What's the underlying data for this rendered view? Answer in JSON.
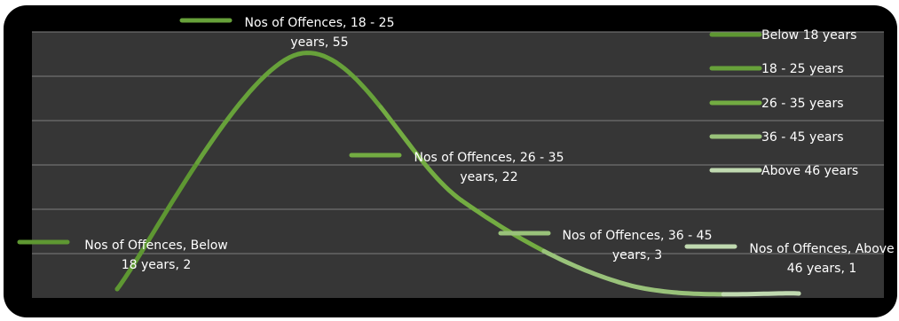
{
  "chart_data": {
    "type": "line",
    "categories": [
      "Below 18 years",
      "18 - 25 years",
      "26 - 35 years",
      "36 - 45 years",
      "Above 46 years"
    ],
    "series": [
      {
        "name": "Nos of Offences",
        "values": [
          2,
          55,
          22,
          3,
          1
        ]
      }
    ],
    "ylim": [
      0,
      60
    ],
    "grid": true,
    "legend_position": "right",
    "colors": [
      "#5e9732",
      "#67a13a",
      "#73ac42",
      "#99c27a",
      "#c0d9b0"
    ],
    "data_labels": [
      [
        "Nos of Offences, Below",
        "18 years, 2"
      ],
      [
        "Nos of Offences, 18 - 25",
        "years, 55"
      ],
      [
        "Nos of Offences, 26 - 35",
        "years, 22"
      ],
      [
        "Nos of Offences, 36 - 45",
        "years, 3"
      ],
      [
        "Nos of Offences, Above",
        "46 years, 1"
      ]
    ],
    "legend": [
      "Below 18 years",
      "18 - 25 years",
      "26 - 35 years",
      "36 - 45 years",
      "Above 46 years"
    ]
  },
  "colors": {
    "plot_bg": "#363636",
    "frame_bg": "#000000",
    "grid": "#7f7f7f",
    "text": "#ffffff"
  }
}
